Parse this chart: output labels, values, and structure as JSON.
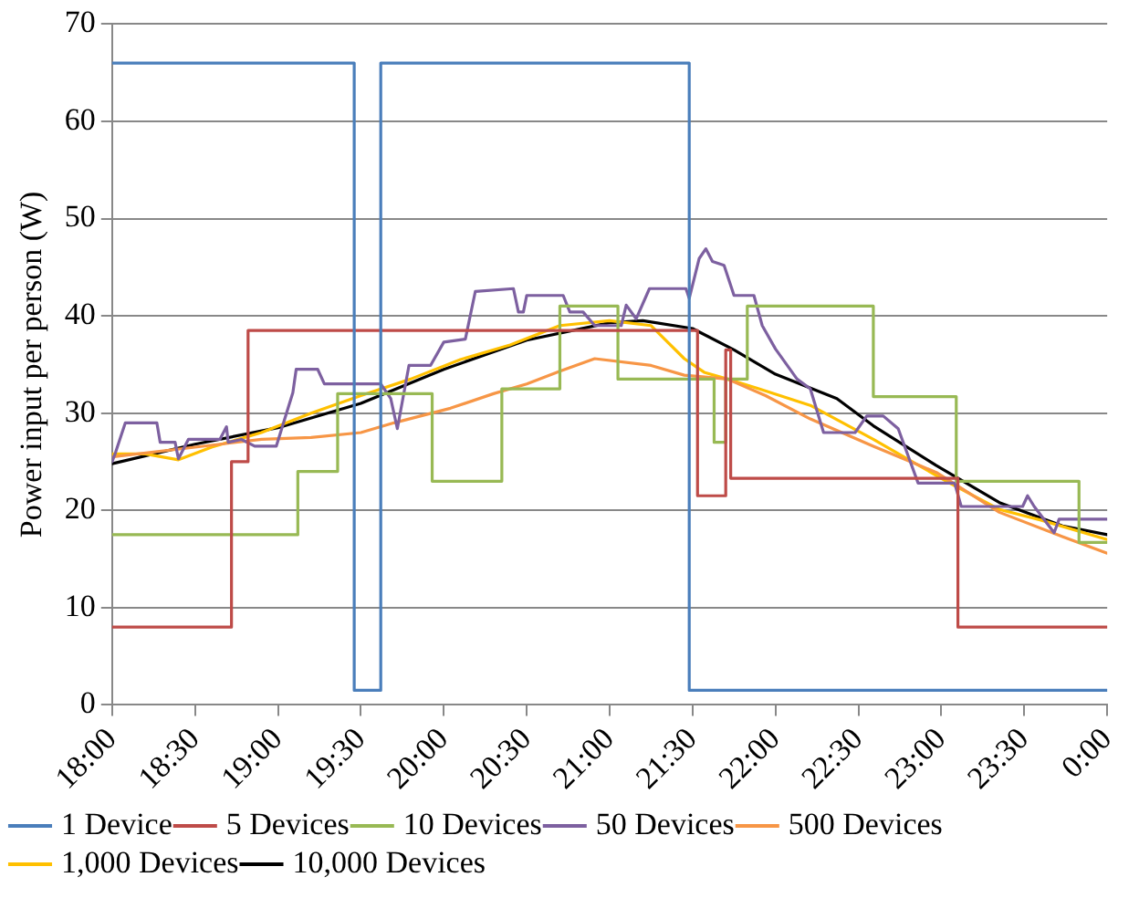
{
  "chart_data": {
    "type": "line",
    "ylabel": "Power input per person (W)",
    "xlim": [
      18,
      24
    ],
    "ylim": [
      0,
      70
    ],
    "yticks": [
      0,
      10,
      20,
      30,
      40,
      50,
      60,
      70
    ],
    "xticks": [
      {
        "value": 18,
        "label": "18:00"
      },
      {
        "value": 18.5,
        "label": "18:30"
      },
      {
        "value": 19,
        "label": "19:00"
      },
      {
        "value": 19.5,
        "label": "19:30"
      },
      {
        "value": 20,
        "label": "20:00"
      },
      {
        "value": 20.5,
        "label": "20:30"
      },
      {
        "value": 21,
        "label": "21:00"
      },
      {
        "value": 21.5,
        "label": "21:30"
      },
      {
        "value": 22,
        "label": "22:00"
      },
      {
        "value": 22.5,
        "label": "22:30"
      },
      {
        "value": 23,
        "label": "23:00"
      },
      {
        "value": 23.5,
        "label": "23:30"
      },
      {
        "value": 24,
        "label": "0:00"
      }
    ],
    "grid": "y",
    "legend": "bottom",
    "marker": "none",
    "line_style": "solid",
    "series": [
      {
        "name": "1 Device",
        "type": "step",
        "color": "#4a7ebb",
        "x": [
          18,
          19.46,
          19.62,
          21.48,
          24
        ],
        "values": [
          66,
          1.5,
          66,
          1.5,
          1.5
        ]
      },
      {
        "name": "5 Devices",
        "type": "step",
        "color": "#be4b48",
        "x": [
          18,
          18.72,
          18.82,
          21.53,
          21.7,
          21.73,
          23.1,
          24
        ],
        "values": [
          8,
          25,
          38.5,
          21.5,
          36.5,
          23.3,
          8,
          8
        ]
      },
      {
        "name": "10 Devices",
        "type": "step",
        "color": "#98b954",
        "x": [
          18,
          19.12,
          19.36,
          19.93,
          20.35,
          20.7,
          21.05,
          21.63,
          21.7,
          21.83,
          22.59,
          23.09,
          23.83,
          24
        ],
        "values": [
          17.5,
          24,
          32,
          23,
          32.5,
          41,
          33.5,
          27,
          33.5,
          41,
          31.7,
          23,
          16.7,
          16.7
        ]
      },
      {
        "name": "50 Devices",
        "color": "#7d60a0",
        "x": [
          18,
          18.02,
          18.08,
          18.27,
          18.29,
          18.38,
          18.4,
          18.46,
          18.65,
          18.69,
          18.7,
          18.78,
          18.86,
          18.99,
          19.09,
          19.11,
          19.24,
          19.28,
          19.62,
          19.68,
          19.72,
          19.79,
          19.92,
          20,
          20.13,
          20.19,
          20.42,
          20.45,
          20.48,
          20.5,
          20.72,
          20.76,
          20.84,
          20.91,
          21.07,
          21.1,
          21.16,
          21.24,
          21.46,
          21.48,
          21.54,
          21.58,
          21.62,
          21.69,
          21.75,
          21.87,
          21.92,
          22,
          22.13,
          22.21,
          22.29,
          22.48,
          22.55,
          22.65,
          22.74,
          22.86,
          23.08,
          23.12,
          23.49,
          23.52,
          23.56,
          23.68,
          23.71,
          24
        ],
        "values": [
          25,
          25.9,
          29,
          29,
          27,
          27,
          25.3,
          27.3,
          27.3,
          28.6,
          27,
          27.3,
          26.6,
          26.6,
          32.1,
          34.5,
          34.5,
          33,
          33,
          31.5,
          28.4,
          34.9,
          34.9,
          37.3,
          37.6,
          42.5,
          42.8,
          40.4,
          40.4,
          42.1,
          42.1,
          40.4,
          40.4,
          39,
          39,
          41.1,
          39.7,
          42.8,
          42.8,
          41.8,
          45.9,
          46.9,
          45.6,
          45.2,
          42.1,
          42.1,
          39,
          36.6,
          33.5,
          32.5,
          28,
          28,
          29.7,
          29.7,
          28.4,
          22.8,
          22.8,
          20.4,
          20.4,
          21.5,
          20.4,
          17.7,
          19.1,
          19.1
        ]
      },
      {
        "name": "500 Devices",
        "color": "#f79646",
        "x": [
          18,
          18.5,
          18.9,
          19.2,
          19.5,
          19.7,
          20.04,
          20.3,
          20.5,
          20.7,
          20.91,
          21.25,
          21.45,
          21.71,
          21.94,
          22.21,
          22.59,
          22.97,
          23.35,
          23.73,
          24
        ],
        "values": [
          25.5,
          26.5,
          27.3,
          27.5,
          28,
          29,
          30.5,
          32,
          33,
          34.3,
          35.6,
          34.9,
          33.9,
          33.5,
          31.8,
          29.4,
          26.6,
          23.9,
          19.8,
          17.3,
          15.6
        ]
      },
      {
        "name": "1,000 Devices",
        "color": "#ffc000",
        "x": [
          18,
          18.2,
          18.4,
          18.6,
          18.9,
          19.2,
          19.5,
          19.8,
          20.1,
          20.4,
          20.7,
          21,
          21.25,
          21.45,
          21.57,
          21.71,
          21.9,
          22.21,
          22.59,
          23.05,
          23.35,
          23.6,
          24
        ],
        "values": [
          25.8,
          25.8,
          25.2,
          26.5,
          28,
          30,
          31.8,
          33.5,
          35.5,
          37,
          39,
          39.5,
          39,
          35.6,
          34.2,
          33.5,
          32.5,
          30.8,
          27.3,
          22.8,
          20.1,
          19,
          17
        ]
      },
      {
        "name": "10,000 Devices",
        "color": "#000000",
        "x": [
          18,
          18.5,
          19,
          19.5,
          20,
          20.5,
          21,
          21.2,
          21.5,
          21.75,
          22,
          22.37,
          22.59,
          22.97,
          23.35,
          23.73,
          24
        ],
        "values": [
          24.8,
          26.8,
          28.5,
          31,
          34.5,
          37.5,
          39.3,
          39.5,
          38.7,
          36.5,
          34,
          31.5,
          28.7,
          24.6,
          20.8,
          18.4,
          17.5
        ]
      }
    ]
  }
}
